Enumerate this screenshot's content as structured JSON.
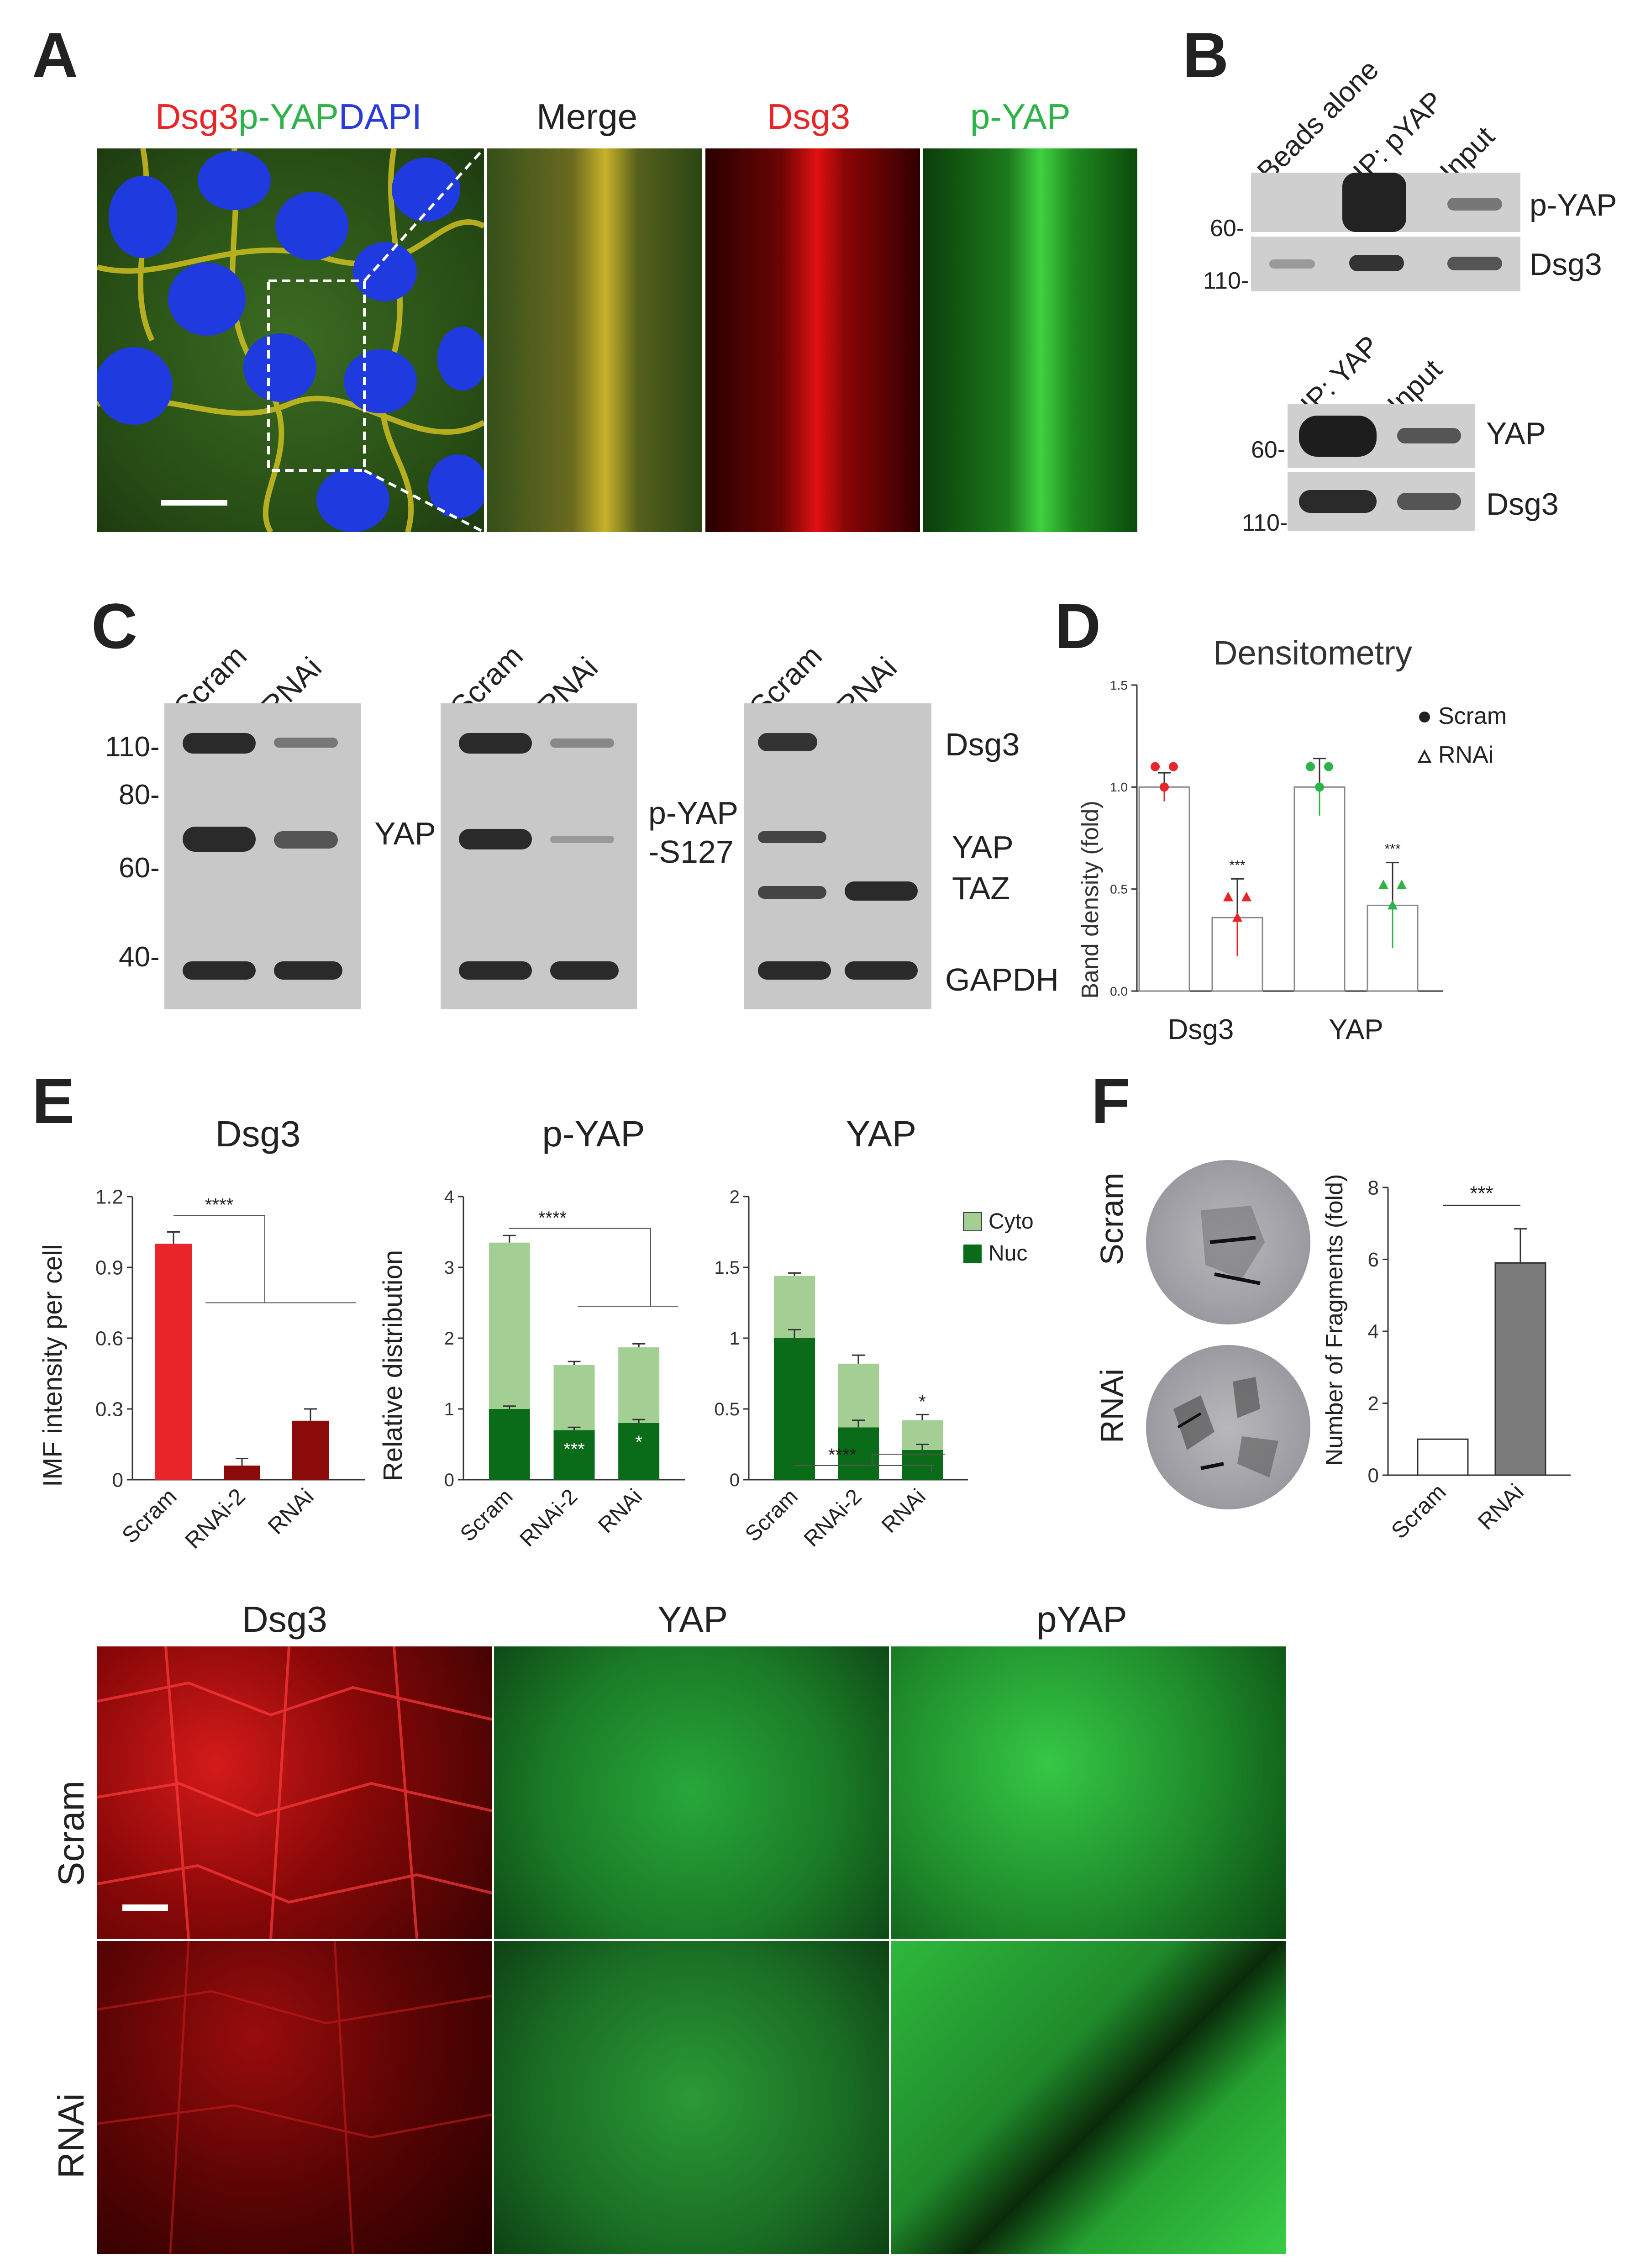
{
  "panels": {
    "A": "A",
    "B": "B",
    "C": "C",
    "D": "D",
    "E": "E",
    "F": "F"
  },
  "panel_a": {
    "title_dsg3": "Dsg3",
    "title_pyap": "p-YAP",
    "title_dapi": "DAPI",
    "merge": "Merge",
    "dsg3": "Dsg3",
    "pyap": "p-YAP"
  },
  "panel_b": {
    "top_lanes": [
      "Beads alone",
      "IP: pYAP",
      "Input"
    ],
    "top_markers": [
      "60-",
      "110-"
    ],
    "top_labels": [
      "p-YAP",
      "Dsg3"
    ],
    "bottom_lanes": [
      "IP: YAP",
      "Input"
    ],
    "bottom_markers": [
      "60-",
      "110-"
    ],
    "bottom_labels": [
      "YAP",
      "Dsg3"
    ]
  },
  "panel_c": {
    "lanes": [
      "Scram",
      "RNAi"
    ],
    "markers": [
      "110-",
      "80-",
      "60-",
      "40-"
    ],
    "blot1_label": "YAP",
    "blot2_label_1": "p-YAP",
    "blot2_label_2": "-S127",
    "blot3_labels": [
      "Dsg3",
      "YAP",
      "TAZ",
      "GAPDH"
    ]
  },
  "colors": {
    "red": "#e8262a",
    "green": "#2db34a",
    "blue": "#2a3bd6",
    "darkred": "#8b0a0a",
    "cyto": "#a3cf94",
    "nuc": "#0a6b18",
    "grey": "#7a7a7a"
  },
  "chart_data": [
    {
      "type": "scatter",
      "title": "Densitometry",
      "ylabel": "Band density (fold)",
      "ylim": [
        0,
        1.5
      ],
      "yticks": [
        "0.0",
        "0.5",
        "1.0",
        "1.5"
      ],
      "categories": [
        "Dsg3",
        "YAP"
      ],
      "series": [
        {
          "name": "Scram",
          "values": [
            1.0,
            1.0
          ],
          "err": [
            0.07,
            0.14
          ]
        },
        {
          "name": "RNAi",
          "values": [
            0.36,
            0.42
          ],
          "err": [
            0.19,
            0.21
          ]
        }
      ],
      "significance": [
        "***",
        "***"
      ]
    },
    {
      "type": "bar",
      "title": "Dsg3",
      "ylabel": "IMF intensity per cell",
      "ylim": [
        0,
        1.2
      ],
      "yticks": [
        "0",
        "0.3",
        "0.6",
        "0.9",
        "1.2"
      ],
      "categories": [
        "Scram",
        "RNAi-2",
        "RNAi"
      ],
      "values": [
        1.0,
        0.06,
        0.25
      ],
      "err": [
        0.05,
        0.03,
        0.05
      ],
      "significance": "****"
    },
    {
      "type": "bar",
      "title": "p-YAP",
      "ylabel": "Relative distribution",
      "ylim": [
        0,
        4
      ],
      "yticks": [
        "0",
        "1",
        "2",
        "3",
        "4"
      ],
      "categories": [
        "Scram",
        "RNAi-2",
        "RNAi"
      ],
      "series": [
        {
          "name": "Nuc",
          "values": [
            1.0,
            0.7,
            0.8
          ],
          "err": [
            0.04,
            0.04,
            0.05
          ]
        },
        {
          "name": "Cyto",
          "values": [
            2.35,
            0.92,
            1.07
          ],
          "err": [
            0.1,
            0.05,
            0.05
          ]
        }
      ],
      "annotations": [
        "",
        "***",
        "*"
      ],
      "significance": "****"
    },
    {
      "type": "bar",
      "title": "YAP",
      "ylim": [
        0,
        2
      ],
      "yticks": [
        "0",
        "0.5",
        "1",
        "1.5",
        "2"
      ],
      "categories": [
        "Scram",
        "RNAi-2",
        "RNAi"
      ],
      "series": [
        {
          "name": "Nuc",
          "values": [
            1.0,
            0.37,
            0.21
          ],
          "err": [
            0.06,
            0.05,
            0.04
          ]
        },
        {
          "name": "Cyto",
          "values": [
            0.44,
            0.45,
            0.21
          ],
          "err": [
            0.02,
            0.06,
            0.04
          ]
        }
      ],
      "annotations": [
        "",
        "",
        "*"
      ],
      "significance": "****",
      "legend": [
        "Cyto",
        "Nuc"
      ]
    },
    {
      "type": "bar",
      "ylabel": "Number of Fragments (fold)",
      "ylim": [
        0,
        8
      ],
      "yticks": [
        "0",
        "2",
        "4",
        "6",
        "8"
      ],
      "categories": [
        "Scram",
        "RNAi"
      ],
      "values": [
        1.0,
        5.9
      ],
      "err": [
        0,
        0.95
      ],
      "significance": "***"
    }
  ],
  "panel_f": {
    "rows": [
      "Scram",
      "RNAi"
    ]
  },
  "bottom": {
    "cols": [
      "Dsg3",
      "YAP",
      "pYAP"
    ],
    "rows": [
      "Scram",
      "RNAi"
    ]
  }
}
